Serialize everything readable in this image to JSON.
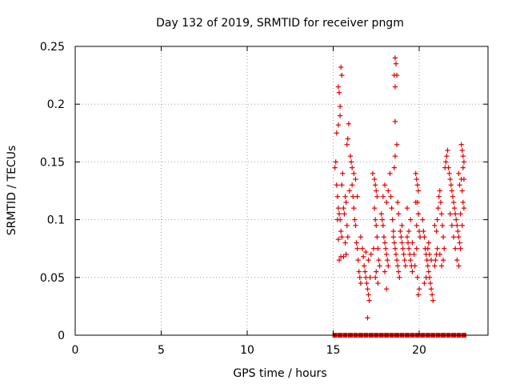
{
  "chart_data": {
    "type": "scatter",
    "title": "Day 132 of 2019, SRMTID for receiver pngm",
    "xlabel": "GPS time / hours",
    "ylabel": "SRMTID / TECUs",
    "xlim": [
      0,
      24
    ],
    "ylim": [
      0,
      0.25
    ],
    "xticks": [
      0,
      5,
      10,
      15,
      20
    ],
    "xtick_labels": [
      "0",
      "5",
      "10",
      "15",
      "20"
    ],
    "yticks": [
      0,
      0.05,
      0.1,
      0.15,
      0.2,
      0.25
    ],
    "ytick_labels": [
      "0",
      "0.05",
      "0.1",
      "0.15",
      "0.2",
      "0.25"
    ],
    "grid": true,
    "marker": "+",
    "series": [
      {
        "name": "SRMTID",
        "color": "#e00000",
        "points": [
          [
            15.2,
            0.175
          ],
          [
            15.3,
            0.215
          ],
          [
            15.35,
            0.21
          ],
          [
            15.4,
            0.19
          ],
          [
            15.45,
            0.232
          ],
          [
            15.5,
            0.225
          ],
          [
            15.4,
            0.198
          ],
          [
            15.3,
            0.182
          ],
          [
            15.1,
            0.145
          ],
          [
            15.15,
            0.15
          ],
          [
            15.2,
            0.13
          ],
          [
            15.25,
            0.12
          ],
          [
            15.3,
            0.11
          ],
          [
            15.35,
            0.105
          ],
          [
            15.4,
            0.1
          ],
          [
            15.45,
            0.09
          ],
          [
            15.5,
            0.085
          ],
          [
            15.3,
            0.083
          ],
          [
            15.35,
            0.065
          ],
          [
            15.45,
            0.068
          ],
          [
            15.25,
            0.1
          ],
          [
            15.5,
            0.13
          ],
          [
            15.55,
            0.14
          ],
          [
            15.6,
            0.11
          ],
          [
            15.65,
            0.105
          ],
          [
            15.7,
            0.12
          ],
          [
            15.75,
            0.115
          ],
          [
            15.8,
            0.095
          ],
          [
            15.85,
            0.085
          ],
          [
            15.7,
            0.08
          ],
          [
            15.75,
            0.07
          ],
          [
            15.6,
            0.068
          ],
          [
            15.8,
            0.165
          ],
          [
            15.85,
            0.17
          ],
          [
            15.9,
            0.183
          ],
          [
            16.0,
            0.155
          ],
          [
            16.05,
            0.15
          ],
          [
            16.1,
            0.145
          ],
          [
            15.95,
            0.125
          ],
          [
            16.1,
            0.13
          ],
          [
            16.15,
            0.12
          ],
          [
            16.2,
            0.11
          ],
          [
            16.25,
            0.1
          ],
          [
            16.3,
            0.095
          ],
          [
            16.35,
            0.08
          ],
          [
            16.4,
            0.075
          ],
          [
            16.45,
            0.065
          ],
          [
            16.5,
            0.055
          ],
          [
            16.55,
            0.05
          ],
          [
            16.6,
            0.045
          ],
          [
            16.2,
            0.14
          ],
          [
            16.3,
            0.135
          ],
          [
            16.4,
            0.12
          ],
          [
            16.6,
            0.085
          ],
          [
            16.7,
            0.075
          ],
          [
            16.75,
            0.068
          ],
          [
            16.8,
            0.06
          ],
          [
            16.85,
            0.055
          ],
          [
            16.9,
            0.05
          ],
          [
            16.95,
            0.045
          ],
          [
            17.0,
            0.04
          ],
          [
            17.05,
            0.035
          ],
          [
            17.1,
            0.03
          ],
          [
            17.0,
            0.015
          ],
          [
            17.15,
            0.05
          ],
          [
            17.2,
            0.07
          ],
          [
            16.9,
            0.072
          ],
          [
            17.05,
            0.065
          ],
          [
            17.3,
            0.14
          ],
          [
            17.4,
            0.135
          ],
          [
            17.45,
            0.13
          ],
          [
            17.5,
            0.125
          ],
          [
            17.55,
            0.12
          ],
          [
            17.4,
            0.11
          ],
          [
            17.45,
            0.1
          ],
          [
            17.5,
            0.095
          ],
          [
            17.55,
            0.085
          ],
          [
            17.6,
            0.075
          ],
          [
            17.65,
            0.065
          ],
          [
            17.7,
            0.06
          ],
          [
            17.5,
            0.055
          ],
          [
            17.45,
            0.05
          ],
          [
            17.6,
            0.045
          ],
          [
            17.35,
            0.075
          ],
          [
            17.8,
            0.105
          ],
          [
            17.85,
            0.1
          ],
          [
            17.9,
            0.095
          ],
          [
            17.95,
            0.085
          ],
          [
            18.0,
            0.08
          ],
          [
            18.05,
            0.075
          ],
          [
            18.1,
            0.07
          ],
          [
            18.15,
            0.065
          ],
          [
            18.2,
            0.06
          ],
          [
            18.0,
            0.055
          ],
          [
            18.1,
            0.04
          ],
          [
            17.9,
            0.12
          ],
          [
            18.0,
            0.13
          ],
          [
            18.1,
            0.115
          ],
          [
            18.2,
            0.125
          ],
          [
            18.3,
            0.14
          ],
          [
            18.35,
            0.12
          ],
          [
            18.4,
            0.11
          ],
          [
            18.45,
            0.1
          ],
          [
            18.5,
            0.09
          ],
          [
            18.6,
            0.24
          ],
          [
            18.65,
            0.235
          ],
          [
            18.7,
            0.225
          ],
          [
            18.6,
            0.215
          ],
          [
            18.55,
            0.225
          ],
          [
            18.6,
            0.185
          ],
          [
            18.7,
            0.165
          ],
          [
            18.6,
            0.155
          ],
          [
            18.55,
            0.145
          ],
          [
            18.5,
            0.085
          ],
          [
            18.55,
            0.08
          ],
          [
            18.6,
            0.075
          ],
          [
            18.65,
            0.07
          ],
          [
            18.7,
            0.065
          ],
          [
            18.75,
            0.06
          ],
          [
            18.8,
            0.055
          ],
          [
            18.85,
            0.05
          ],
          [
            18.9,
            0.09
          ],
          [
            18.95,
            0.085
          ],
          [
            19.0,
            0.08
          ],
          [
            19.05,
            0.075
          ],
          [
            19.1,
            0.07
          ],
          [
            19.15,
            0.065
          ],
          [
            19.2,
            0.06
          ],
          [
            19.0,
            0.095
          ],
          [
            18.8,
            0.105
          ],
          [
            18.75,
            0.115
          ],
          [
            19.3,
            0.085
          ],
          [
            19.35,
            0.08
          ],
          [
            19.4,
            0.075
          ],
          [
            19.45,
            0.07
          ],
          [
            19.5,
            0.065
          ],
          [
            19.55,
            0.06
          ],
          [
            19.6,
            0.055
          ],
          [
            19.4,
            0.09
          ],
          [
            19.5,
            0.1
          ],
          [
            19.3,
            0.11
          ],
          [
            19.6,
            0.08
          ],
          [
            19.7,
            0.07
          ],
          [
            19.75,
            0.06
          ],
          [
            19.8,
            0.14
          ],
          [
            19.85,
            0.135
          ],
          [
            19.9,
            0.13
          ],
          [
            19.95,
            0.125
          ],
          [
            19.9,
            0.115
          ],
          [
            19.95,
            0.105
          ],
          [
            20.0,
            0.09
          ],
          [
            20.05,
            0.085
          ],
          [
            19.8,
            0.115
          ],
          [
            19.85,
            0.095
          ],
          [
            19.9,
            0.05
          ],
          [
            19.95,
            0.035
          ],
          [
            20.0,
            0.04
          ],
          [
            19.85,
            0.075
          ],
          [
            20.2,
            0.1
          ],
          [
            20.25,
            0.09
          ],
          [
            20.3,
            0.085
          ],
          [
            20.35,
            0.075
          ],
          [
            20.4,
            0.07
          ],
          [
            20.45,
            0.065
          ],
          [
            20.5,
            0.06
          ],
          [
            20.55,
            0.055
          ],
          [
            20.6,
            0.05
          ],
          [
            20.65,
            0.045
          ],
          [
            20.7,
            0.04
          ],
          [
            20.75,
            0.035
          ],
          [
            20.8,
            0.03
          ],
          [
            20.4,
            0.05
          ],
          [
            20.3,
            0.045
          ],
          [
            20.5,
            0.075
          ],
          [
            20.6,
            0.07
          ],
          [
            20.7,
            0.065
          ],
          [
            20.55,
            0.08
          ],
          [
            20.9,
            0.06
          ],
          [
            20.95,
            0.065
          ],
          [
            21.0,
            0.07
          ],
          [
            21.05,
            0.075
          ],
          [
            20.9,
            0.095
          ],
          [
            21.0,
            0.09
          ],
          [
            21.05,
            0.1
          ],
          [
            21.1,
            0.11
          ],
          [
            21.15,
            0.12
          ],
          [
            21.2,
            0.125
          ],
          [
            21.25,
            0.115
          ],
          [
            21.3,
            0.105
          ],
          [
            21.35,
            0.095
          ],
          [
            21.4,
            0.085
          ],
          [
            21.45,
            0.075
          ],
          [
            21.2,
            0.07
          ],
          [
            21.3,
            0.06
          ],
          [
            21.4,
            0.065
          ],
          [
            21.5,
            0.145
          ],
          [
            21.55,
            0.15
          ],
          [
            21.6,
            0.155
          ],
          [
            21.65,
            0.16
          ],
          [
            21.7,
            0.145
          ],
          [
            21.75,
            0.14
          ],
          [
            21.8,
            0.135
          ],
          [
            21.85,
            0.13
          ],
          [
            21.9,
            0.125
          ],
          [
            21.95,
            0.12
          ],
          [
            22.0,
            0.115
          ],
          [
            22.05,
            0.11
          ],
          [
            22.1,
            0.105
          ],
          [
            22.15,
            0.1
          ],
          [
            22.2,
            0.095
          ],
          [
            22.25,
            0.09
          ],
          [
            22.3,
            0.085
          ],
          [
            22.35,
            0.08
          ],
          [
            22.4,
            0.075
          ],
          [
            21.8,
            0.105
          ],
          [
            21.9,
            0.095
          ],
          [
            22.0,
            0.085
          ],
          [
            22.1,
            0.075
          ],
          [
            22.2,
            0.065
          ],
          [
            22.3,
            0.06
          ],
          [
            22.45,
            0.165
          ],
          [
            22.5,
            0.16
          ],
          [
            22.55,
            0.155
          ],
          [
            22.6,
            0.15
          ],
          [
            22.45,
            0.135
          ],
          [
            22.5,
            0.125
          ],
          [
            22.55,
            0.115
          ],
          [
            22.6,
            0.11
          ],
          [
            22.4,
            0.105
          ],
          [
            22.5,
            0.095
          ],
          [
            22.55,
            0.145
          ],
          [
            22.6,
            0.135
          ],
          [
            22.3,
            0.14
          ],
          [
            22.35,
            0.13
          ]
        ]
      }
    ],
    "baseline_markers": {
      "y": 0,
      "x": [
        15.1,
        15.4,
        15.7,
        16.0,
        16.3,
        16.6,
        16.9,
        17.2,
        17.5,
        17.8,
        18.1,
        18.4,
        18.7,
        19.0,
        19.3,
        19.6,
        19.9,
        20.2,
        20.5,
        20.8,
        21.1,
        21.4,
        21.7,
        22.0,
        22.3,
        22.6
      ]
    }
  }
}
